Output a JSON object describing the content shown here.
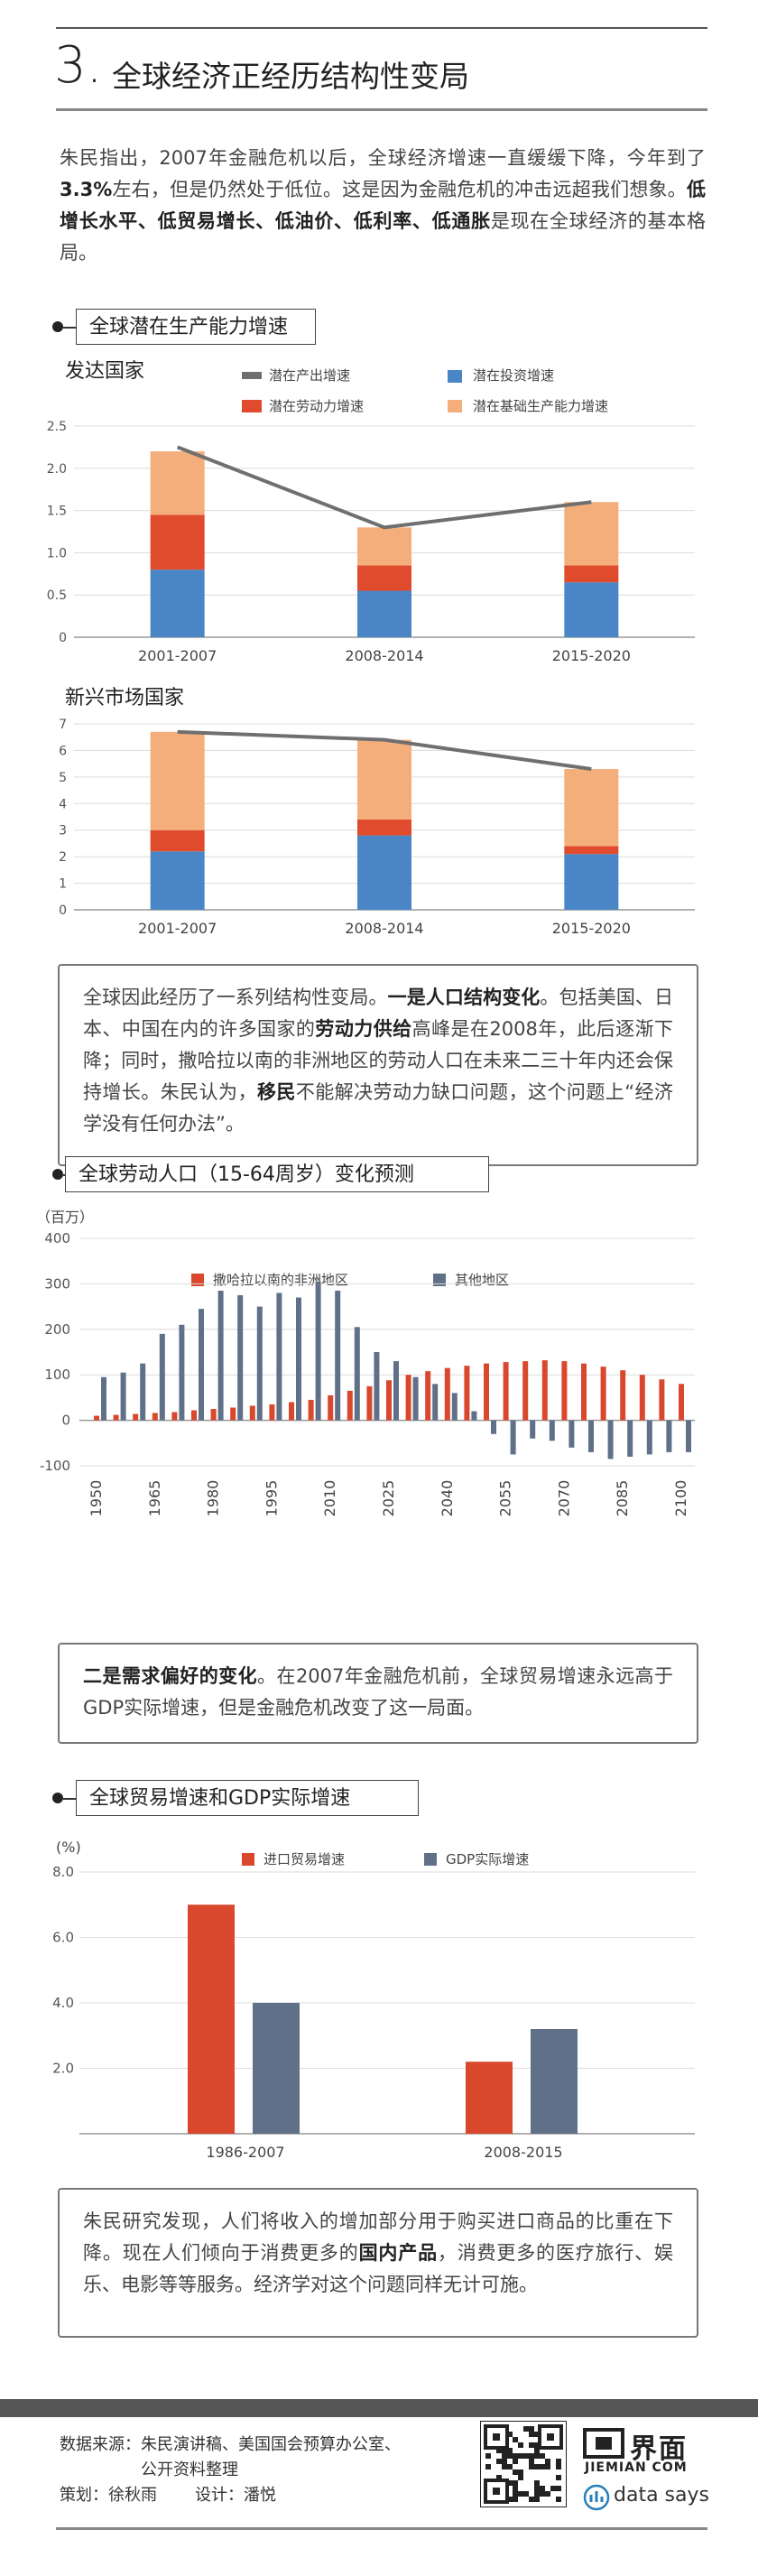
{
  "section": {
    "number": "3.",
    "title": "全球经济正经历结构性变局"
  },
  "intro": {
    "p1": "朱民指出，2007年金融危机以后，全球经济增速一直缓缓下降，今年到了",
    "b1": "3.3%",
    "p2": "左右，但是仍然处于低位。这是因为金融危机的冲击远超我们想象。",
    "b2": "低增长水平、低贸易增长、低油价、低利率、低通胀",
    "p3": "是现在全球经济的基本格局。"
  },
  "chart1_label": "全球潜在生产能力增速",
  "legend1": {
    "output": "潜在产出增速",
    "investment": "潜在投资增速",
    "labor": "潜在劳动力增速",
    "infra": "潜在基础生产能力增速"
  },
  "colors": {
    "blue": "#4a86c5",
    "red": "#df4b2c",
    "peach": "#f4ae7b",
    "grey": "#6f6f6f",
    "bar_red": "#d9472c",
    "bar_slate": "#5f7088"
  },
  "chart_data": [
    {
      "type": "bar",
      "title": "发达国家",
      "categories": [
        "2001-2007",
        "2008-2014",
        "2015-2020"
      ],
      "series": [
        {
          "name": "潜在投资增速",
          "values": [
            0.8,
            0.55,
            0.65
          ]
        },
        {
          "name": "潜在劳动力增速",
          "values": [
            0.65,
            0.3,
            0.2
          ]
        },
        {
          "name": "潜在基础生产能力增速",
          "values": [
            0.75,
            0.45,
            0.75
          ]
        },
        {
          "name": "潜在产出增速",
          "values": [
            2.25,
            1.3,
            1.6
          ]
        }
      ],
      "yticks": [
        "0",
        "0.5",
        "1.0",
        "1.5",
        "2.0",
        "2.5"
      ],
      "ylim": [
        0,
        2.5
      ]
    },
    {
      "type": "bar",
      "title": "新兴市场国家",
      "categories": [
        "2001-2007",
        "2008-2014",
        "2015-2020"
      ],
      "series": [
        {
          "name": "潜在投资增速",
          "values": [
            2.2,
            2.8,
            2.1
          ]
        },
        {
          "name": "潜在劳动力增速",
          "values": [
            0.8,
            0.6,
            0.3
          ]
        },
        {
          "name": "潜在基础生产能力增速",
          "values": [
            3.7,
            3.0,
            2.9
          ]
        },
        {
          "name": "潜在产出增速",
          "values": [
            6.7,
            6.4,
            5.3
          ]
        }
      ],
      "yticks": [
        "0",
        "1",
        "2",
        "3",
        "4",
        "5",
        "6",
        "7"
      ],
      "ylim": [
        0,
        7
      ]
    },
    {
      "type": "bar",
      "title": "全球劳动人口（15-64周岁）变化预测",
      "unit": "（百万）",
      "x": [
        1950,
        1955,
        1960,
        1965,
        1970,
        1975,
        1980,
        1985,
        1990,
        1995,
        2000,
        2005,
        2010,
        2015,
        2020,
        2025,
        2030,
        2035,
        2040,
        2045,
        2050,
        2055,
        2060,
        2065,
        2070,
        2075,
        2080,
        2085,
        2090,
        2095,
        2100
      ],
      "xticks": [
        "1950",
        "1965",
        "1980",
        "1995",
        "2010",
        "2025",
        "2040",
        "2055",
        "2070",
        "2085",
        "2100"
      ],
      "series": [
        {
          "name": "撒哈拉以南的非洲地区",
          "values": [
            10,
            12,
            14,
            16,
            18,
            22,
            25,
            28,
            32,
            35,
            40,
            45,
            55,
            65,
            75,
            88,
            100,
            108,
            115,
            120,
            125,
            128,
            130,
            132,
            130,
            125,
            118,
            110,
            100,
            90,
            80
          ]
        },
        {
          "name": "其他地区",
          "values": [
            95,
            105,
            125,
            190,
            210,
            245,
            285,
            275,
            250,
            280,
            270,
            305,
            285,
            205,
            150,
            130,
            95,
            80,
            60,
            20,
            -30,
            -75,
            -40,
            -45,
            -60,
            -70,
            -85,
            -80,
            -75,
            -70,
            -70
          ]
        }
      ],
      "yticks": [
        "-100",
        "0",
        "100",
        "200",
        "300",
        "400"
      ],
      "ylim": [
        -100,
        400
      ]
    },
    {
      "type": "bar",
      "title": "全球贸易增速和GDP实际增速",
      "unit": "(%)",
      "categories": [
        "1986-2007",
        "2008-2015"
      ],
      "series": [
        {
          "name": "进口贸易增速",
          "values": [
            7.0,
            2.2
          ]
        },
        {
          "name": "GDP实际增速",
          "values": [
            4.0,
            3.2
          ]
        }
      ],
      "yticks": [
        "2.0",
        "4.0",
        "6.0",
        "8.0"
      ],
      "ylim": [
        0,
        8
      ]
    }
  ],
  "note1": {
    "p1": "全球因此经历了一系列结构性变局。",
    "b1": "一是人口结构变化",
    "p2": "。包括美国、日本、中国在内的许多国家的",
    "b2": "劳动力供给",
    "p3": "高峰是在2008年，此后逐渐下降；同时，撒哈拉以南的非洲地区的劳动人口在未来二三十年内还会保持增长。朱民认为，",
    "b3": "移民",
    "p4": "不能解决劳动力缺口问题，这个问题上“经济学没有任何办法”。"
  },
  "chart3_label": "全球劳动人口（15-64周岁）变化预测",
  "note2": {
    "b1": "二是需求偏好的变化",
    "p1": "。在2007年金融危机前，全球贸易增速永远高于GDP实际增速，但是金融危机改变了这一局面。"
  },
  "chart4_label": "全球贸易增速和GDP实际增速",
  "note3": {
    "p1": "朱民研究发现，人们将收入的增加部分用于购买进口商品的比重在下降。现在人们倾向于消费更多的",
    "b1": "国内产品",
    "p2": "，消费更多的医疗旅行、娱乐、电影等等服务。经济学对这个问题同样无计可施。"
  },
  "footer": {
    "source_label": "数据来源：",
    "source_line1": "朱民演讲稿、美国国会预算办公室、",
    "source_line2": "公开资料整理",
    "planner": "策划：徐秋雨",
    "designer": "设计：潘悦",
    "logo_cn": "界面",
    "logo_en": "JIEMIAN COM",
    "ds_text": "data says"
  }
}
